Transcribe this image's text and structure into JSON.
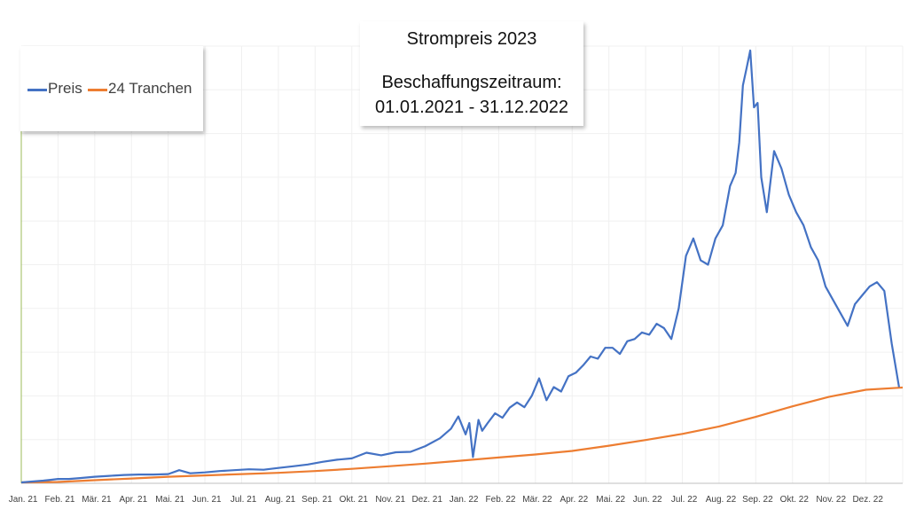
{
  "chart_data": {
    "type": "line",
    "title_lines": [
      "Strompreis 2023",
      "Beschaffungszeitraum:",
      "01.01.2021 - 31.12.2022"
    ],
    "x_ticks": [
      "Jan. 21",
      "Feb. 21",
      "Mär. 21",
      "Apr. 21",
      "Mai. 21",
      "Jun. 21",
      "Jul. 21",
      "Aug. 21",
      "Sep. 21",
      "Okt. 21",
      "Nov. 21",
      "Dez. 21",
      "Jan. 22",
      "Feb. 22",
      "Mär. 22",
      "Apr. 22",
      "Mai. 22",
      "Jun. 22",
      "Jul. 22",
      "Aug. 22",
      "Sep. 22",
      "Okt. 22",
      "Nov. 22",
      "Dez. 22"
    ],
    "xlim": [
      0,
      24
    ],
    "ylim": [
      0,
      100
    ],
    "grid": true,
    "legend_position": "top-left",
    "series": [
      {
        "name": "Preis",
        "color": "#4472C4",
        "x": [
          0,
          0.3,
          0.6,
          0.8,
          1.0,
          1.3,
          1.6,
          2.0,
          2.4,
          2.8,
          3.2,
          3.6,
          4.0,
          4.3,
          4.6,
          5.0,
          5.4,
          5.8,
          6.2,
          6.6,
          7.0,
          7.4,
          7.8,
          8.2,
          8.6,
          9.0,
          9.4,
          9.8,
          10.2,
          10.6,
          11.0,
          11.4,
          11.7,
          11.9,
          12.1,
          12.2,
          12.3,
          12.45,
          12.55,
          12.7,
          12.9,
          13.1,
          13.3,
          13.5,
          13.7,
          13.9,
          14.1,
          14.3,
          14.5,
          14.7,
          14.9,
          15.1,
          15.3,
          15.5,
          15.7,
          15.9,
          16.1,
          16.3,
          16.5,
          16.7,
          16.9,
          17.1,
          17.3,
          17.5,
          17.7,
          17.9,
          18.1,
          18.3,
          18.5,
          18.7,
          18.9,
          19.1,
          19.3,
          19.45,
          19.55,
          19.65,
          19.75,
          19.85,
          19.95,
          20.05,
          20.15,
          20.3,
          20.5,
          20.7,
          20.9,
          21.1,
          21.3,
          21.5,
          21.7,
          21.9,
          22.1,
          22.3,
          22.5,
          22.7,
          22.9,
          23.1,
          23.3,
          23.5,
          23.7,
          23.9
        ],
        "values": [
          0.2,
          0.4,
          0.6,
          0.8,
          1.0,
          1.0,
          1.2,
          1.5,
          1.7,
          1.9,
          2.0,
          2.0,
          2.1,
          3.0,
          2.3,
          2.5,
          2.8,
          3.0,
          3.2,
          3.1,
          3.5,
          3.9,
          4.3,
          4.9,
          5.4,
          5.7,
          7.0,
          6.4,
          7.1,
          7.2,
          8.5,
          10.3,
          12.5,
          15.3,
          11.2,
          13.8,
          6.0,
          14.5,
          12.0,
          13.8,
          16.0,
          15.0,
          17.3,
          18.5,
          17.4,
          20.0,
          24.0,
          19.0,
          22.0,
          21.0,
          24.5,
          25.3,
          27.0,
          29.0,
          28.5,
          31.0,
          31.0,
          29.6,
          32.5,
          33.0,
          34.5,
          34.0,
          36.5,
          35.5,
          33.0,
          40.0,
          52.0,
          56.0,
          51.0,
          50.0,
          56.0,
          59.0,
          68.0,
          71.0,
          78.0,
          91.0,
          95.0,
          99.0,
          86.0,
          87.0,
          70.0,
          62.0,
          76.0,
          72.0,
          66.0,
          62.0,
          59.0,
          54.0,
          51.0,
          45.0,
          42.0,
          39.0,
          36.0,
          41.0,
          43.0,
          45.0,
          46.0,
          44.0,
          32.0,
          22.0
        ]
      },
      {
        "name": "24 Tranchen",
        "color": "#ED7D31",
        "x": [
          0,
          1,
          2,
          3,
          4,
          5,
          6,
          7,
          8,
          9,
          10,
          11,
          12,
          13,
          14,
          15,
          16,
          17,
          18,
          19,
          20,
          21,
          22,
          23,
          24
        ],
        "values": [
          0.2,
          0.3,
          0.7,
          1.1,
          1.5,
          1.8,
          2.1,
          2.4,
          2.8,
          3.3,
          3.9,
          4.5,
          5.2,
          5.9,
          6.6,
          7.4,
          8.6,
          9.9,
          11.3,
          13.0,
          15.2,
          17.6,
          19.8,
          21.4,
          21.9
        ]
      }
    ]
  }
}
